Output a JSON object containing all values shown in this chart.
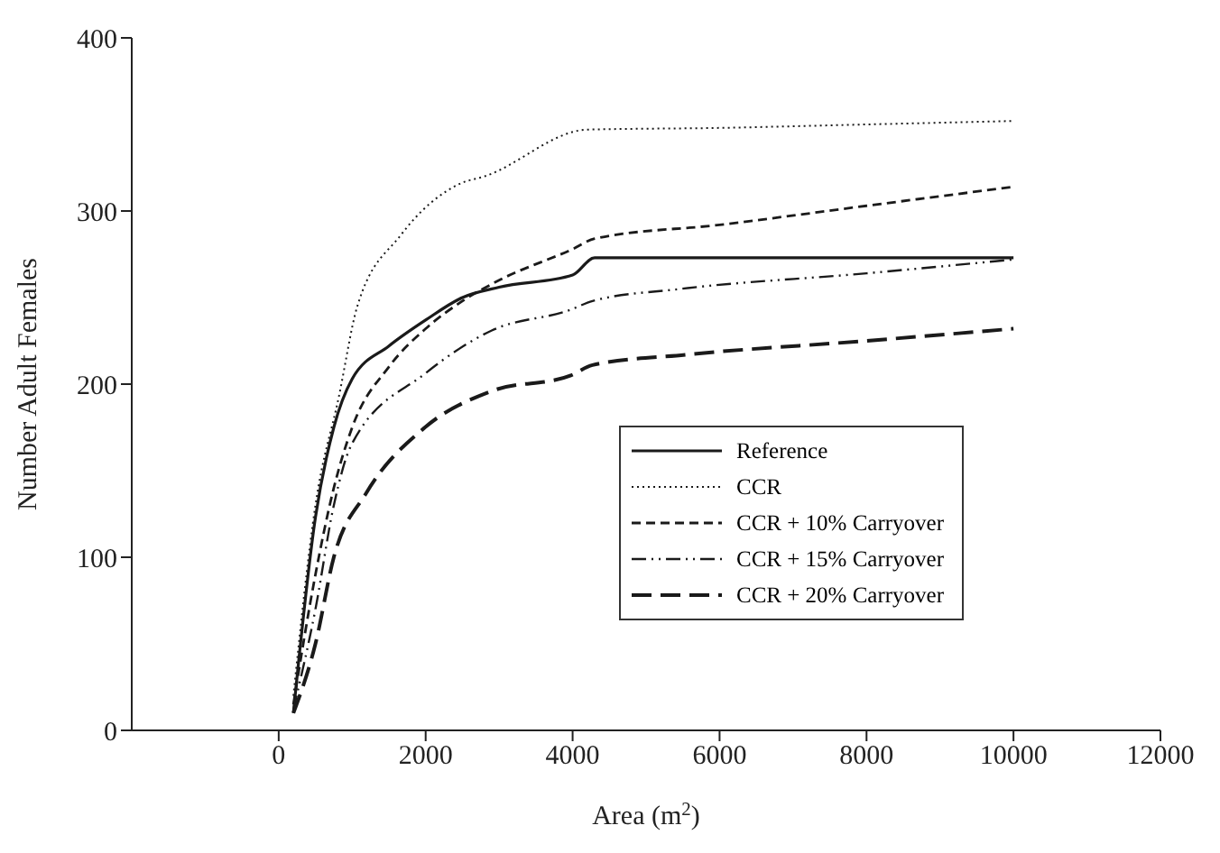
{
  "chart_data": {
    "type": "line",
    "xlabel": "Area (m$^{2}$)",
    "ylabel": "Number Adult Females",
    "xlim": [
      -2000,
      12000
    ],
    "xticks": [
      0,
      2000,
      4000,
      6000,
      8000,
      10000,
      12000
    ],
    "ylim": [
      0,
      400
    ],
    "yticks": [
      0,
      100,
      200,
      300,
      400
    ],
    "legend": "right",
    "marker": "none",
    "series": [
      {
        "name": "Reference",
        "color": "#1a1a1a",
        "line_style": "solid",
        "x": [
          200,
          500,
          750,
          1000,
          1500,
          2000,
          2500,
          3000,
          4000,
          4300,
          6000,
          8000,
          10000
        ],
        "values": [
          10,
          123,
          175,
          203,
          222,
          237,
          250,
          256,
          263,
          273,
          273,
          273,
          273
        ]
      },
      {
        "name": "CCR",
        "color": "#1a1a1a",
        "line_style": "dotted",
        "x": [
          200,
          500,
          820,
          1070,
          1660,
          2480,
          2800,
          4200,
          6000,
          8000,
          10000
        ],
        "values": [
          20,
          130,
          193,
          245,
          286,
          316,
          320,
          347,
          348,
          350,
          352
        ]
      },
      {
        "name": "CCR + 10% Carryover",
        "color": "#1a1a1a",
        "line_style": "dashed",
        "x": [
          200,
          500,
          750,
          1000,
          1500,
          2000,
          2500,
          3000,
          4000,
          4300,
          6000,
          8000,
          10000
        ],
        "values": [
          15,
          90,
          140,
          175,
          210,
          232,
          248,
          260,
          278,
          284,
          292,
          303,
          314
        ]
      },
      {
        "name": "CCR + 15% Carryover",
        "color": "#1a1a1a",
        "line_style": "dashdot",
        "x": [
          200,
          500,
          750,
          990,
          1990,
          2900,
          3975,
          4270,
          5470,
          8000,
          10000
        ],
        "values": [
          12,
          70,
          130,
          165,
          206,
          231,
          243,
          248,
          255,
          264,
          272
        ]
      },
      {
        "name": "CCR + 20% Carryover",
        "color": "#1a1a1a",
        "line_style": "longdash",
        "x": [
          200,
          500,
          750,
          1190,
          1990,
          2900,
          3975,
          4270,
          5540,
          8000,
          10000
        ],
        "values": [
          10,
          50,
          100,
          137,
          175,
          196,
          205,
          211,
          217,
          225,
          232
        ]
      }
    ]
  }
}
